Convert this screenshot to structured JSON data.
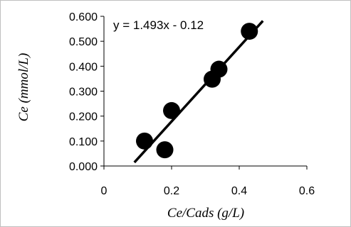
{
  "chart_data": {
    "type": "scatter",
    "title": "",
    "xlabel": "Ce/Cads (g/L)",
    "ylabel": "Ce (mmol/L)",
    "xlim": [
      0,
      0.6
    ],
    "ylim": [
      0,
      0.6
    ],
    "x_ticks": [
      "0",
      "0.2",
      "0.4",
      "0.6"
    ],
    "y_ticks": [
      "0.000",
      "0.100",
      "0.200",
      "0.300",
      "0.400",
      "0.500",
      "0.600"
    ],
    "grid": false,
    "legend": "none",
    "series": [
      {
        "points": [
          {
            "x": 0.12,
            "y": 0.1
          },
          {
            "x": 0.18,
            "y": 0.065
          },
          {
            "x": 0.2,
            "y": 0.222
          },
          {
            "x": 0.32,
            "y": 0.348
          },
          {
            "x": 0.34,
            "y": 0.388
          },
          {
            "x": 0.43,
            "y": 0.54
          }
        ],
        "color": "#000000"
      }
    ],
    "trendline": {
      "type": "linear",
      "slope": 1.493,
      "intercept": -0.12,
      "x_range": [
        0.09,
        0.47
      ],
      "equation_label": "y = 1.493x - 0.12"
    }
  }
}
